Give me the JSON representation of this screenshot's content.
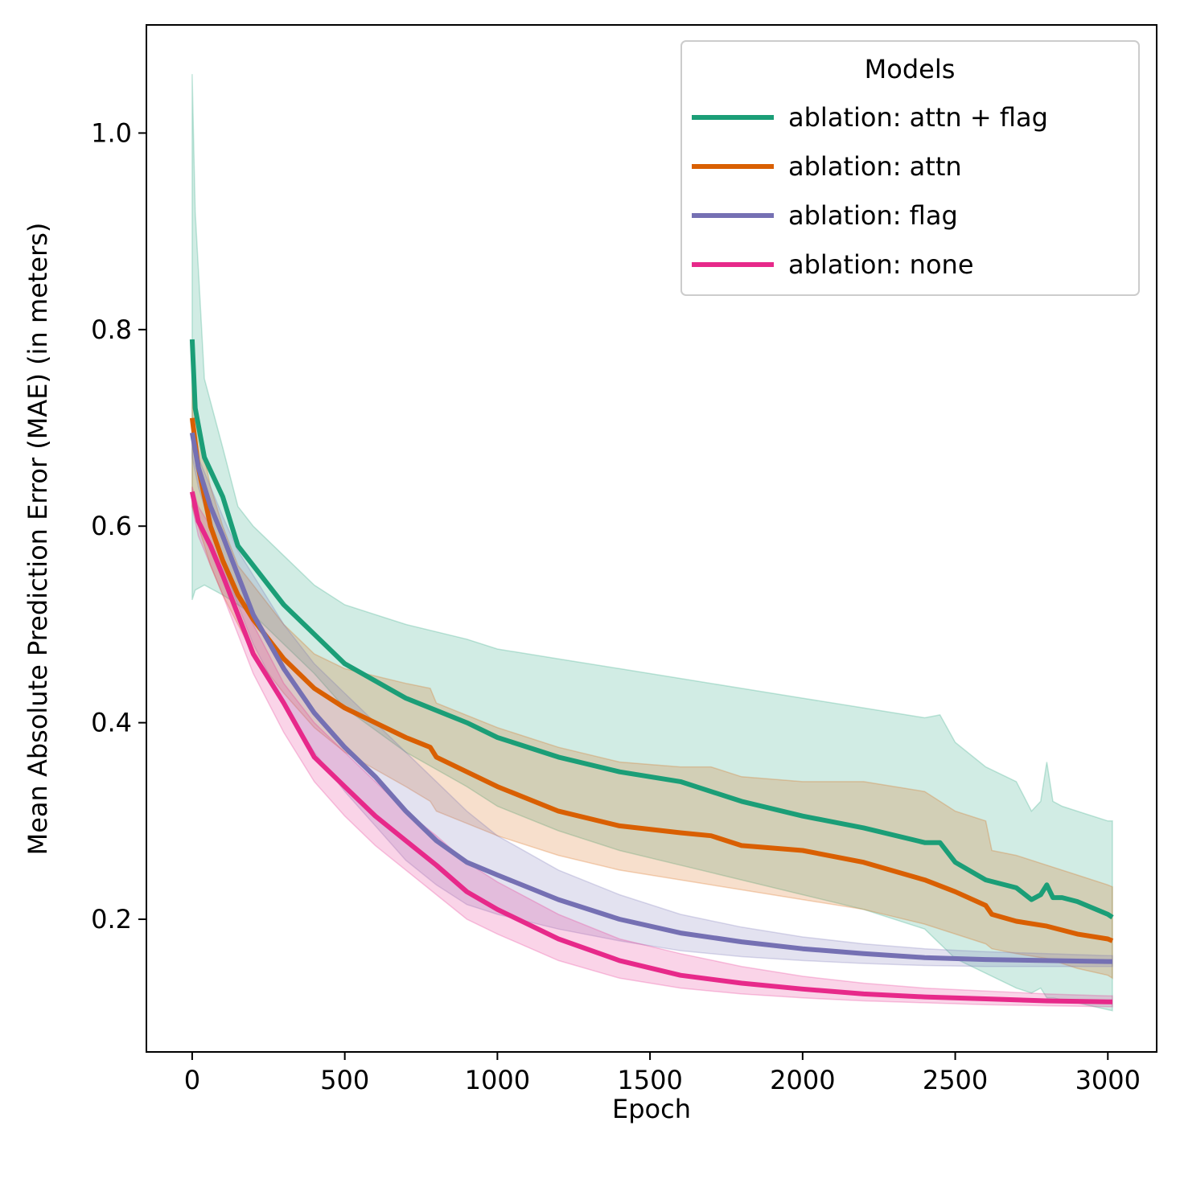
{
  "chart_data": {
    "type": "line",
    "xlabel": "Epoch",
    "ylabel": "Mean Absolute Prediction Error (MAE) (in meters)",
    "xlim": [
      -150,
      3160
    ],
    "ylim": [
      0.065,
      1.11
    ],
    "xticks": [
      0,
      500,
      1000,
      1500,
      2000,
      2500,
      3000
    ],
    "xtick_labels": [
      "0",
      "500",
      "1000",
      "1500",
      "2000",
      "2500",
      "3000"
    ],
    "yticks": [
      0.2,
      0.4,
      0.6,
      0.8,
      1.0
    ],
    "ytick_labels": [
      "0.2",
      "0.4",
      "0.6",
      "0.8",
      "1.0"
    ],
    "grid": false,
    "legend": {
      "title": "Models",
      "position": "top-right"
    },
    "series": [
      {
        "name": "ablation: attn + flag",
        "color": "#1b9e77",
        "x": [
          0,
          10,
          40,
          100,
          150,
          200,
          300,
          400,
          500,
          700,
          900,
          1000,
          1200,
          1400,
          1600,
          1800,
          2000,
          2200,
          2400,
          2450,
          2500,
          2600,
          2700,
          2750,
          2780,
          2800,
          2820,
          2850,
          2900,
          3000,
          3015
        ],
        "mean": [
          0.79,
          0.72,
          0.67,
          0.63,
          0.58,
          0.56,
          0.52,
          0.49,
          0.46,
          0.425,
          0.4,
          0.385,
          0.365,
          0.35,
          0.34,
          0.32,
          0.305,
          0.293,
          0.278,
          0.278,
          0.258,
          0.24,
          0.232,
          0.22,
          0.225,
          0.235,
          0.222,
          0.222,
          0.218,
          0.205,
          0.202
        ],
        "lower": [
          0.525,
          0.535,
          0.54,
          0.53,
          0.52,
          0.51,
          0.48,
          0.45,
          0.415,
          0.37,
          0.335,
          0.315,
          0.29,
          0.27,
          0.255,
          0.24,
          0.225,
          0.21,
          0.19,
          0.175,
          0.16,
          0.145,
          0.13,
          0.125,
          0.13,
          0.12,
          0.12,
          0.118,
          0.115,
          0.108,
          0.107
        ],
        "upper": [
          1.06,
          0.92,
          0.75,
          0.68,
          0.62,
          0.6,
          0.57,
          0.54,
          0.52,
          0.5,
          0.485,
          0.475,
          0.465,
          0.455,
          0.445,
          0.435,
          0.425,
          0.415,
          0.405,
          0.408,
          0.38,
          0.355,
          0.34,
          0.31,
          0.32,
          0.36,
          0.32,
          0.315,
          0.31,
          0.3,
          0.3
        ]
      },
      {
        "name": "ablation: attn",
        "color": "#d95f02",
        "x": [
          0,
          20,
          60,
          100,
          150,
          200,
          300,
          400,
          500,
          700,
          780,
          800,
          1000,
          1200,
          1400,
          1600,
          1700,
          1800,
          2000,
          2200,
          2400,
          2500,
          2600,
          2620,
          2700,
          2800,
          2900,
          3000,
          3015
        ],
        "mean": [
          0.71,
          0.66,
          0.6,
          0.565,
          0.53,
          0.505,
          0.465,
          0.435,
          0.415,
          0.385,
          0.375,
          0.365,
          0.335,
          0.31,
          0.295,
          0.288,
          0.285,
          0.275,
          0.27,
          0.258,
          0.24,
          0.228,
          0.214,
          0.205,
          0.198,
          0.193,
          0.185,
          0.18,
          0.178
        ],
        "lower": [
          0.62,
          0.6,
          0.56,
          0.53,
          0.5,
          0.47,
          0.43,
          0.395,
          0.37,
          0.335,
          0.32,
          0.31,
          0.285,
          0.265,
          0.25,
          0.24,
          0.235,
          0.23,
          0.22,
          0.21,
          0.195,
          0.185,
          0.175,
          0.17,
          0.165,
          0.16,
          0.15,
          0.143,
          0.14
        ],
        "upper": [
          0.75,
          0.7,
          0.64,
          0.6,
          0.56,
          0.54,
          0.5,
          0.47,
          0.455,
          0.44,
          0.435,
          0.42,
          0.395,
          0.375,
          0.36,
          0.355,
          0.355,
          0.345,
          0.34,
          0.34,
          0.33,
          0.31,
          0.3,
          0.27,
          0.265,
          0.255,
          0.245,
          0.235,
          0.233
        ]
      },
      {
        "name": "ablation: flag",
        "color": "#7570b3",
        "x": [
          0,
          20,
          60,
          100,
          150,
          200,
          300,
          400,
          500,
          600,
          700,
          800,
          900,
          1000,
          1200,
          1400,
          1600,
          1800,
          2000,
          2200,
          2400,
          2600,
          2800,
          3000,
          3015
        ],
        "mean": [
          0.695,
          0.66,
          0.62,
          0.59,
          0.55,
          0.51,
          0.455,
          0.41,
          0.375,
          0.345,
          0.31,
          0.28,
          0.258,
          0.245,
          0.22,
          0.2,
          0.186,
          0.177,
          0.17,
          0.165,
          0.161,
          0.159,
          0.158,
          0.157,
          0.157
        ],
        "lower": [
          0.67,
          0.64,
          0.6,
          0.56,
          0.52,
          0.48,
          0.42,
          0.37,
          0.33,
          0.295,
          0.26,
          0.235,
          0.215,
          0.205,
          0.19,
          0.178,
          0.168,
          0.162,
          0.158,
          0.155,
          0.153,
          0.152,
          0.152,
          0.152,
          0.152
        ],
        "upper": [
          0.7,
          0.67,
          0.64,
          0.61,
          0.575,
          0.55,
          0.5,
          0.46,
          0.43,
          0.4,
          0.37,
          0.34,
          0.31,
          0.285,
          0.25,
          0.225,
          0.205,
          0.192,
          0.182,
          0.175,
          0.17,
          0.167,
          0.165,
          0.163,
          0.163
        ]
      },
      {
        "name": "ablation: none",
        "color": "#e7298a",
        "x": [
          0,
          20,
          60,
          100,
          150,
          200,
          300,
          400,
          500,
          600,
          700,
          800,
          900,
          1000,
          1200,
          1400,
          1600,
          1800,
          2000,
          2200,
          2400,
          2600,
          2800,
          3000,
          3015
        ],
        "mean": [
          0.635,
          0.605,
          0.58,
          0.55,
          0.51,
          0.47,
          0.42,
          0.365,
          0.335,
          0.305,
          0.28,
          0.255,
          0.228,
          0.21,
          0.18,
          0.158,
          0.143,
          0.135,
          0.129,
          0.124,
          0.121,
          0.119,
          0.117,
          0.116,
          0.116
        ],
        "lower": [
          0.62,
          0.59,
          0.56,
          0.53,
          0.49,
          0.45,
          0.39,
          0.34,
          0.305,
          0.275,
          0.25,
          0.225,
          0.2,
          0.185,
          0.158,
          0.14,
          0.13,
          0.124,
          0.12,
          0.117,
          0.115,
          0.113,
          0.112,
          0.111,
          0.111
        ],
        "upper": [
          0.64,
          0.62,
          0.6,
          0.57,
          0.53,
          0.5,
          0.44,
          0.4,
          0.37,
          0.34,
          0.31,
          0.285,
          0.258,
          0.238,
          0.205,
          0.18,
          0.165,
          0.152,
          0.142,
          0.135,
          0.13,
          0.127,
          0.124,
          0.122,
          0.122
        ]
      }
    ]
  }
}
